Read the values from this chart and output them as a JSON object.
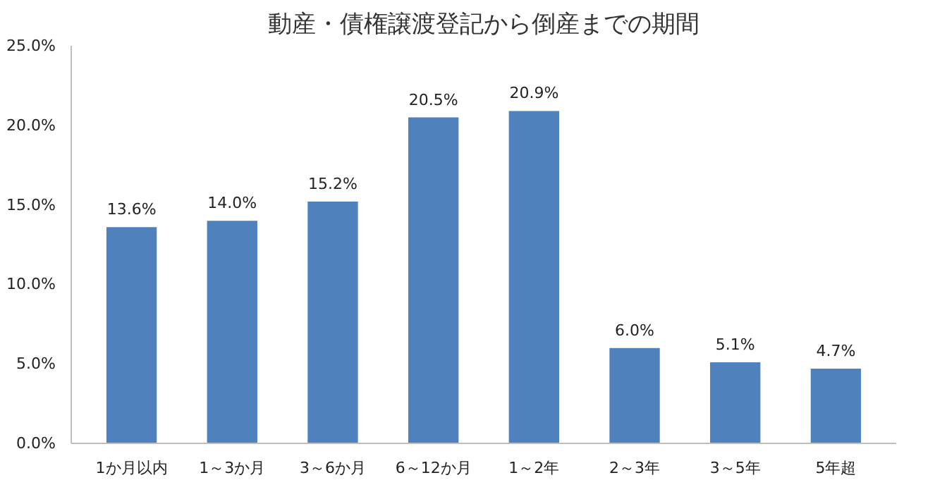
{
  "chart_data": {
    "type": "bar",
    "title": "動産・債権譲渡登記から倒産までの期間",
    "categories": [
      "1か月以内",
      "1～3か月",
      "3～6か月",
      "6～12か月",
      "1～2年",
      "2～3年",
      "3～5年",
      "5年超"
    ],
    "values": [
      13.6,
      14.0,
      15.2,
      20.5,
      20.9,
      6.0,
      5.1,
      4.7
    ],
    "value_labels": [
      "13.6%",
      "14.0%",
      "15.2%",
      "20.5%",
      "20.9%",
      "6.0%",
      "5.1%",
      "4.7%"
    ],
    "color": "#4f81bd",
    "ylim": [
      0,
      25
    ],
    "yticks": [
      {
        "value": 0,
        "label": "0.0%"
      },
      {
        "value": 5,
        "label": "5.0%"
      },
      {
        "value": 10,
        "label": "10.0%"
      },
      {
        "value": 15,
        "label": "15.0%"
      },
      {
        "value": 20,
        "label": "20.0%"
      },
      {
        "value": 25,
        "label": "25.0%"
      }
    ],
    "grid": false
  }
}
